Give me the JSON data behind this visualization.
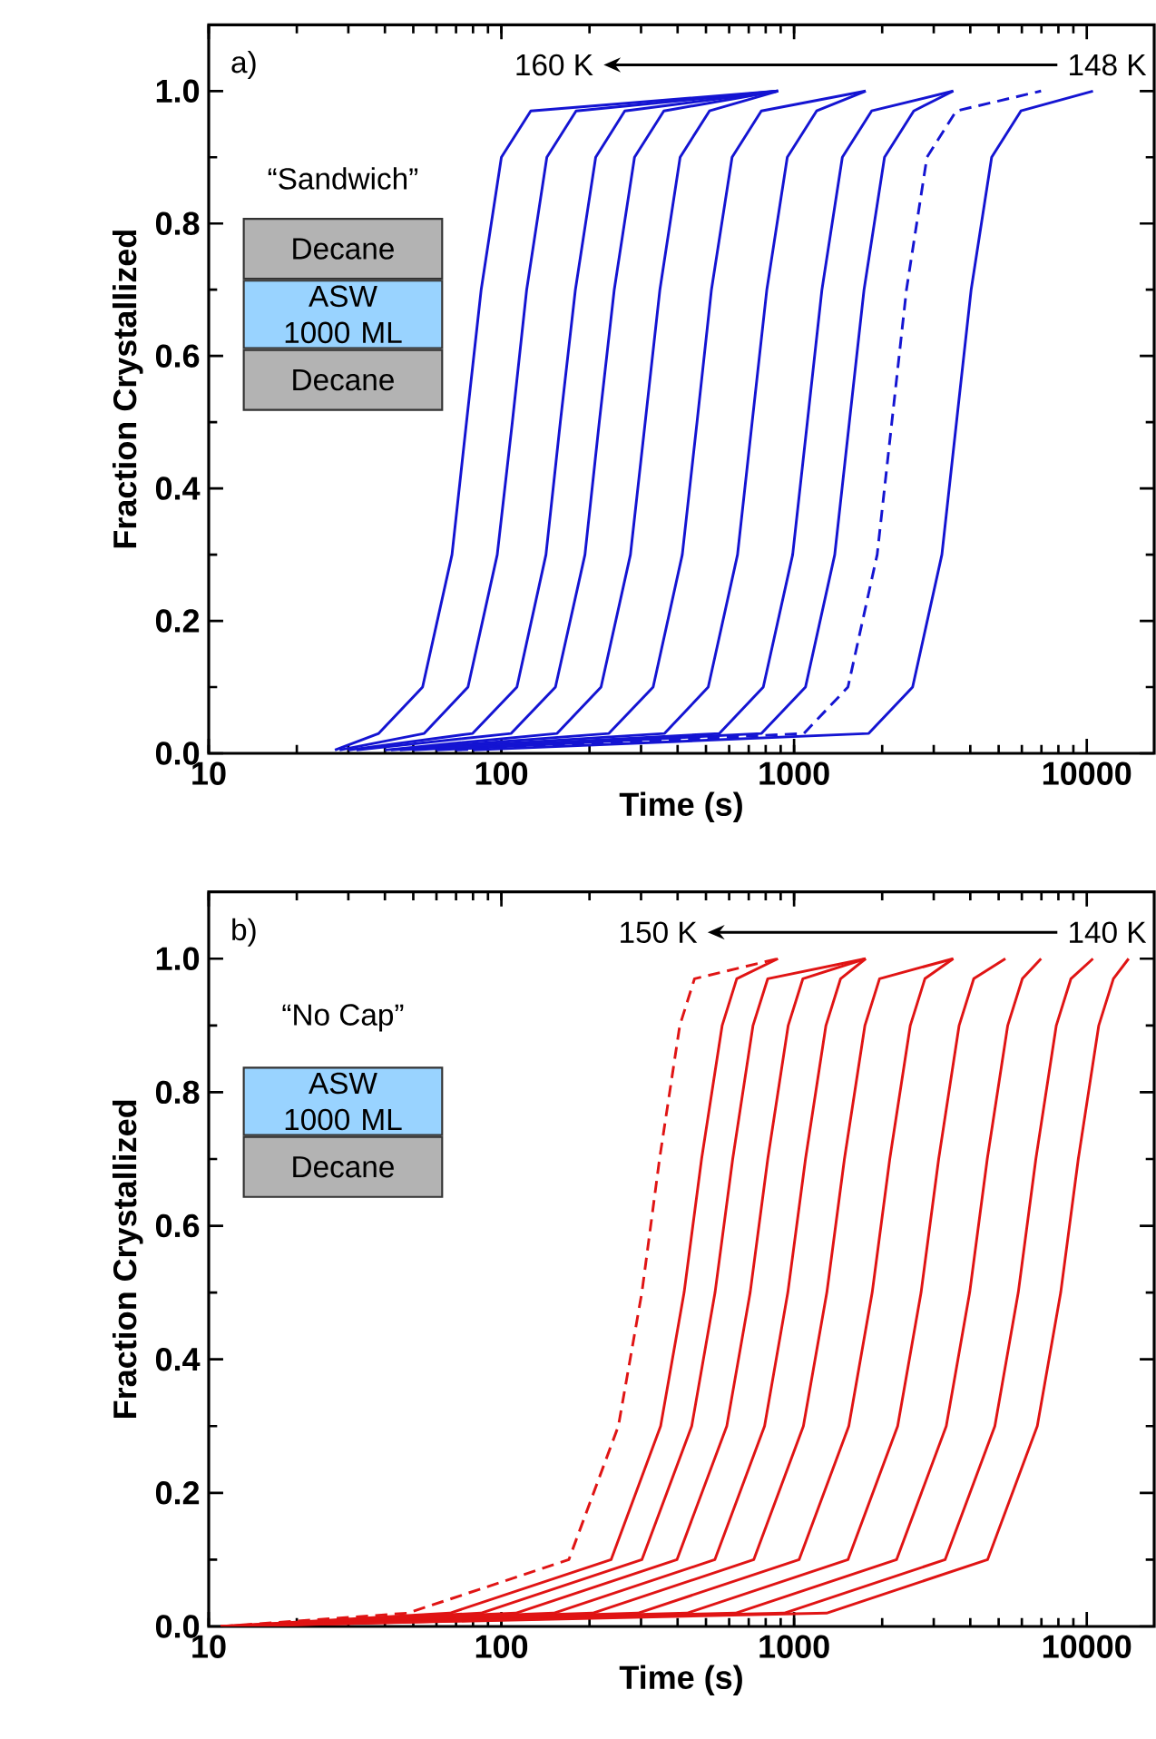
{
  "chart_data": [
    {
      "type": "line",
      "xlabel": "Time (s)",
      "ylabel": "Fraction Crystallized",
      "log": "x",
      "xlim": [
        10,
        17000
      ],
      "ylim": [
        0,
        1.1
      ],
      "xticks": [
        10,
        100,
        1000,
        10000
      ],
      "yticks": [
        {
          "value": 0,
          "label": "0.0"
        },
        {
          "value": 0.2,
          "label": "0.2"
        },
        {
          "value": 0.4,
          "label": "0.4"
        },
        {
          "value": 0.6,
          "label": "0.6"
        },
        {
          "value": 0.8,
          "label": "0.8"
        },
        {
          "value": 1.0,
          "label": "1.0"
        }
      ],
      "annotations": [
        "a)",
        "160 K",
        "148 K",
        "“Sandwich”",
        "Decane",
        "ASW 1000 ML",
        "Decane"
      ],
      "series": [
        {
          "color": "#1414d2",
          "line_style": "solid",
          "x": [
            27,
            38.1,
            53.8,
            67.8,
            76.0,
            85.3,
            100,
            126,
            881
          ],
          "values": [
            0.005,
            0.03,
            0.1,
            0.3,
            0.5,
            0.7,
            0.9,
            0.97,
            1.0
          ]
        },
        {
          "color": "#1414d2",
          "line_style": "solid",
          "x": [
            28,
            54.5,
            76.9,
            96.8,
            109,
            122,
            143,
            180,
            881
          ],
          "values": [
            0.005,
            0.03,
            0.1,
            0.3,
            0.5,
            0.7,
            0.9,
            0.97,
            1.0
          ]
        },
        {
          "color": "#1414d2",
          "line_style": "solid",
          "x": [
            30,
            79.8,
            113,
            142,
            159,
            179,
            210,
            264,
            881
          ],
          "values": [
            0.005,
            0.03,
            0.1,
            0.3,
            0.5,
            0.7,
            0.9,
            0.97,
            1.0
          ]
        },
        {
          "color": "#1414d2",
          "line_style": "solid",
          "x": [
            32,
            108,
            153,
            193,
            216,
            243,
            285,
            359,
            881
          ],
          "values": [
            0.005,
            0.03,
            0.1,
            0.3,
            0.5,
            0.7,
            0.9,
            0.97,
            1.0
          ]
        },
        {
          "color": "#1414d2",
          "line_style": "solid",
          "x": [
            40,
            155,
            219,
            276,
            310,
            348,
            408,
            514,
            881
          ],
          "values": [
            0.005,
            0.03,
            0.1,
            0.3,
            0.5,
            0.7,
            0.9,
            0.97,
            1.0
          ]
        },
        {
          "color": "#1414d2",
          "line_style": "solid",
          "x": [
            42,
            233,
            330,
            415,
            466,
            522,
            614,
            773,
            1757
          ],
          "values": [
            0.005,
            0.03,
            0.1,
            0.3,
            0.5,
            0.7,
            0.9,
            0.97,
            1.0
          ]
        },
        {
          "color": "#1414d2",
          "line_style": "solid",
          "x": [
            45,
            361,
            509,
            641,
            719,
            807,
            948,
            1194,
            1757
          ],
          "values": [
            0.005,
            0.03,
            0.1,
            0.3,
            0.5,
            0.7,
            0.9,
            0.97,
            1.0
          ]
        },
        {
          "color": "#1414d2",
          "line_style": "solid",
          "x": [
            50,
            556,
            785,
            989,
            1110,
            1245,
            1462,
            1841,
            3500
          ],
          "values": [
            0.005,
            0.03,
            0.1,
            0.3,
            0.5,
            0.7,
            0.9,
            0.97,
            1.0
          ]
        },
        {
          "color": "#1414d2",
          "line_style": "solid",
          "x": [
            60,
            774,
            1094,
            1377,
            1545,
            1734,
            2037,
            2564,
            3500
          ],
          "values": [
            0.005,
            0.03,
            0.1,
            0.3,
            0.5,
            0.7,
            0.9,
            0.97,
            1.0
          ]
        },
        {
          "color": "#1414d2",
          "line_style": "dashed",
          "x": [
            70,
            1081,
            1528,
            1923,
            2158,
            2421,
            2844,
            3581,
            6980
          ],
          "values": [
            0.005,
            0.03,
            0.1,
            0.3,
            0.5,
            0.7,
            0.9,
            0.97,
            1.0
          ]
        },
        {
          "color": "#1414d2",
          "line_style": "solid",
          "x": [
            80,
            1799,
            2541,
            3199,
            3589,
            4027,
            4732,
            5957,
            10500
          ],
          "values": [
            0.005,
            0.03,
            0.1,
            0.3,
            0.5,
            0.7,
            0.9,
            0.97,
            1.0
          ]
        }
      ]
    },
    {
      "type": "line",
      "xlabel": "Time (s)",
      "ylabel": "Fraction Crystallized",
      "log": "x",
      "xlim": [
        10,
        17000
      ],
      "ylim": [
        0,
        1.1
      ],
      "xticks": [
        10,
        100,
        1000,
        10000
      ],
      "yticks": [
        {
          "value": 0,
          "label": "0.0"
        },
        {
          "value": 0.2,
          "label": "0.2"
        },
        {
          "value": 0.4,
          "label": "0.4"
        },
        {
          "value": 0.6,
          "label": "0.6"
        },
        {
          "value": 0.8,
          "label": "0.8"
        },
        {
          "value": 1.0,
          "label": "1.0"
        }
      ],
      "annotations": [
        "b)",
        "150 K",
        "140 K",
        "“No Cap”",
        "ASW 1000 ML",
        "Decane"
      ],
      "series": [
        {
          "color": "#e01414",
          "line_style": "dashed",
          "x": [
            11,
            47.9,
            170,
            251,
            302,
            347,
            407,
            457,
            881
          ],
          "values": [
            0.0,
            0.02,
            0.1,
            0.3,
            0.5,
            0.7,
            0.9,
            0.97,
            1.0
          ]
        },
        {
          "color": "#e01414",
          "line_style": "solid",
          "x": [
            11,
            66.7,
            237,
            350,
            421,
            483,
            568,
            637,
            881
          ],
          "values": [
            0.0,
            0.02,
            0.1,
            0.3,
            0.5,
            0.7,
            0.9,
            0.97,
            1.0
          ]
        },
        {
          "color": "#e01414",
          "line_style": "solid",
          "x": [
            11,
            85.1,
            302,
            447,
            537,
            617,
            724,
            813,
            1757
          ],
          "values": [
            0.0,
            0.02,
            0.1,
            0.3,
            0.5,
            0.7,
            0.9,
            0.97,
            1.0
          ]
        },
        {
          "color": "#e01414",
          "line_style": "solid",
          "x": [
            11,
            112,
            398,
            589,
            708,
            813,
            955,
            1072,
            1757
          ],
          "values": [
            0.0,
            0.02,
            0.1,
            0.3,
            0.5,
            0.7,
            0.9,
            0.97,
            1.0
          ]
        },
        {
          "color": "#e01414",
          "line_style": "solid",
          "x": [
            11,
            151,
            536,
            793,
            952,
            1094,
            1285,
            1442,
            1757
          ],
          "values": [
            0.0,
            0.02,
            0.1,
            0.3,
            0.5,
            0.7,
            0.9,
            0.97,
            1.0
          ]
        },
        {
          "color": "#e01414",
          "line_style": "solid",
          "x": [
            11,
            205,
            728,
            1076,
            1294,
            1486,
            1746,
            1959,
            3500
          ],
          "values": [
            0.0,
            0.02,
            0.1,
            0.3,
            0.5,
            0.7,
            0.9,
            0.97,
            1.0
          ]
        },
        {
          "color": "#e01414",
          "line_style": "solid",
          "x": [
            11,
            293,
            1040,
            1538,
            1849,
            2123,
            2495,
            2799,
            3500
          ],
          "values": [
            0.0,
            0.02,
            0.1,
            0.3,
            0.5,
            0.7,
            0.9,
            0.97,
            1.0
          ]
        },
        {
          "color": "#e01414",
          "line_style": "solid",
          "x": [
            11,
            431,
            1528,
            2259,
            2716,
            3119,
            3664,
            4111,
            5272
          ],
          "values": [
            0.0,
            0.02,
            0.1,
            0.3,
            0.5,
            0.7,
            0.9,
            0.97,
            1.0
          ]
        },
        {
          "color": "#e01414",
          "line_style": "solid",
          "x": [
            11,
            631,
            2239,
            3311,
            3981,
            4571,
            5370,
            6026,
            6980
          ],
          "values": [
            0.0,
            0.02,
            0.1,
            0.3,
            0.5,
            0.7,
            0.9,
            0.97,
            1.0
          ]
        },
        {
          "color": "#e01414",
          "line_style": "solid",
          "x": [
            11,
            925,
            3281,
            4853,
            5834,
            6699,
            7870,
            8831,
            10500
          ],
          "values": [
            0.0,
            0.02,
            0.1,
            0.3,
            0.5,
            0.7,
            0.9,
            0.97,
            1.0
          ]
        },
        {
          "color": "#e01414",
          "line_style": "solid",
          "x": [
            11,
            1291,
            4581,
            6776,
            8147,
            9354,
            10990,
            12330,
            13900
          ],
          "values": [
            0.0,
            0.02,
            0.1,
            0.3,
            0.5,
            0.7,
            0.9,
            0.97,
            1.0
          ]
        }
      ]
    }
  ]
}
